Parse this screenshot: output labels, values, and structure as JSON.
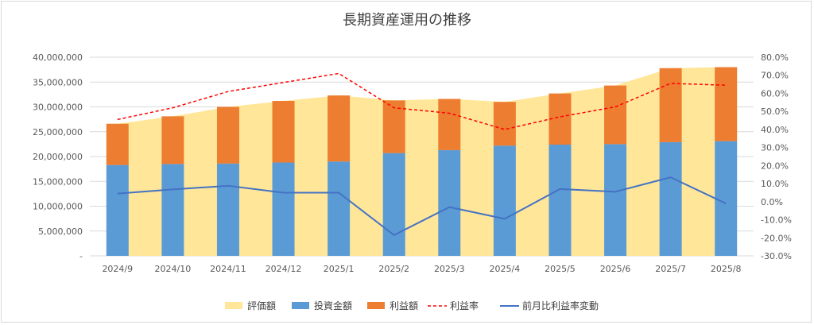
{
  "chart_data": {
    "type": "bar",
    "title": "長期資産運用の推移",
    "categories": [
      "2024/9",
      "2024/10",
      "2024/11",
      "2024/12",
      "2025/1",
      "2025/2",
      "2025/3",
      "2025/4",
      "2025/5",
      "2025/6",
      "2025/7",
      "2025/8"
    ],
    "y_left": {
      "range": [
        0,
        40000000
      ],
      "ticks": [
        "-",
        "5,000,000",
        "10,000,000",
        "15,000,000",
        "20,000,000",
        "25,000,000",
        "30,000,000",
        "35,000,000",
        "40,000,000"
      ]
    },
    "y_right": {
      "range": [
        -30,
        80
      ],
      "ticks": [
        "-30.0%",
        "-20.0%",
        "-10.0%",
        "0.0%",
        "10.0%",
        "20.0%",
        "30.0%",
        "40.0%",
        "50.0%",
        "60.0%",
        "70.0%",
        "80.0%"
      ]
    },
    "series": [
      {
        "name": "評価額",
        "type": "area",
        "axis": "left",
        "color": "#FFE699",
        "values": [
          26600000,
          28100000,
          30000000,
          31200000,
          32300000,
          31300000,
          31600000,
          31000000,
          32700000,
          34300000,
          37800000,
          38000000
        ]
      },
      {
        "name": "投資金額",
        "type": "stacked-bar",
        "axis": "left",
        "color": "#5B9BD5",
        "values": [
          18300000,
          18500000,
          18600000,
          18800000,
          19000000,
          20700000,
          21300000,
          22200000,
          22400000,
          22500000,
          22900000,
          23100000
        ]
      },
      {
        "name": "利益額",
        "type": "stacked-bar",
        "axis": "left",
        "color": "#ED7D31",
        "values": [
          8300000,
          9600000,
          11400000,
          12400000,
          13300000,
          10600000,
          10300000,
          8800000,
          10300000,
          11800000,
          14900000,
          14900000
        ]
      },
      {
        "name": "利益率",
        "type": "line-dashed",
        "axis": "right",
        "color": "#FF0000",
        "values": [
          45.5,
          52,
          61,
          66,
          71,
          52,
          49,
          40,
          47,
          52.5,
          65.5,
          64.5
        ]
      },
      {
        "name": "前月比利益率変動",
        "type": "line",
        "axis": "right",
        "color": "#4472C4",
        "values": [
          4.5,
          6.8,
          8.8,
          5.0,
          5.0,
          -18.5,
          -3.0,
          -9.5,
          7.0,
          5.5,
          13.5,
          -1.0
        ]
      }
    ],
    "grid": true,
    "legend_position": "bottom"
  }
}
